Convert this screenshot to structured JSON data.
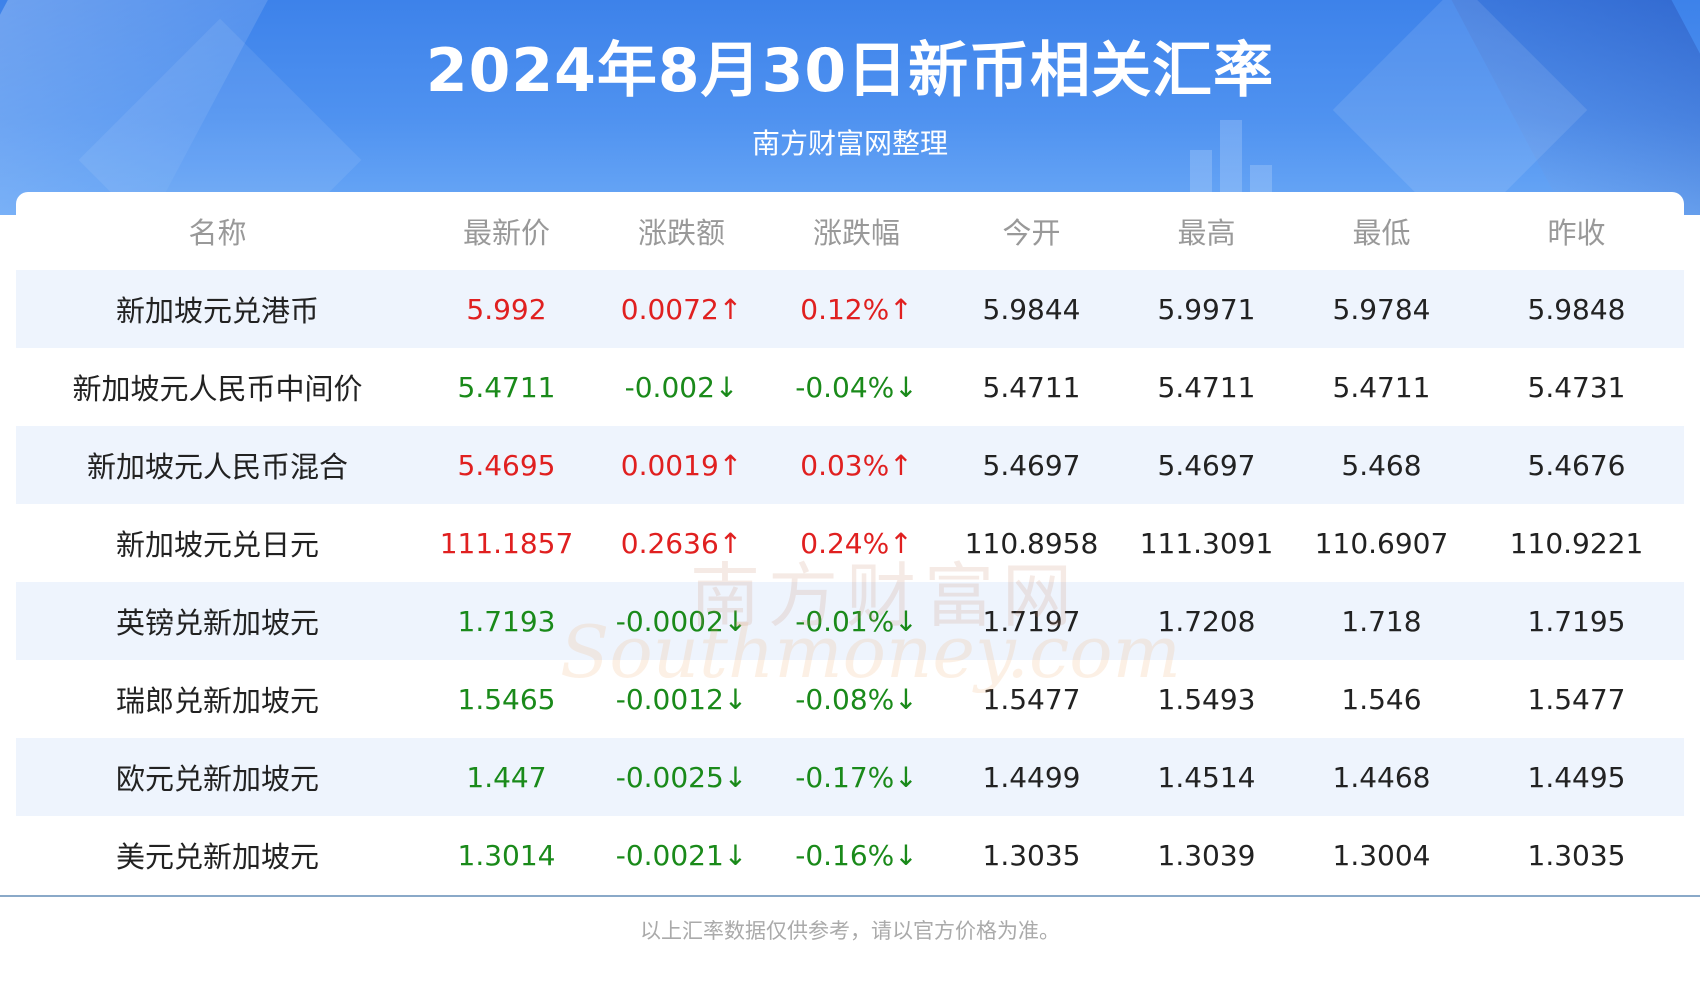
{
  "header": {
    "title": "2024年8月30日新币相关汇率",
    "subtitle": "南方财富网整理"
  },
  "table": {
    "columns": [
      "名称",
      "最新价",
      "涨跌额",
      "涨跌幅",
      "今开",
      "最高",
      "最低",
      "昨收"
    ],
    "rows": [
      {
        "name": "新加坡元兑港币",
        "latest": "5.992",
        "change": "0.0072↑",
        "pct": "0.12%↑",
        "open": "5.9844",
        "high": "5.9971",
        "low": "5.9784",
        "prev": "5.9848",
        "dir": "up"
      },
      {
        "name": "新加坡元人民币中间价",
        "latest": "5.4711",
        "change": "-0.002↓",
        "pct": "-0.04%↓",
        "open": "5.4711",
        "high": "5.4711",
        "low": "5.4711",
        "prev": "5.4731",
        "dir": "down"
      },
      {
        "name": "新加坡元人民币混合",
        "latest": "5.4695",
        "change": "0.0019↑",
        "pct": "0.03%↑",
        "open": "5.4697",
        "high": "5.4697",
        "low": "5.468",
        "prev": "5.4676",
        "dir": "up"
      },
      {
        "name": "新加坡元兑日元",
        "latest": "111.1857",
        "change": "0.2636↑",
        "pct": "0.24%↑",
        "open": "110.8958",
        "high": "111.3091",
        "low": "110.6907",
        "prev": "110.9221",
        "dir": "up"
      },
      {
        "name": "英镑兑新加坡元",
        "latest": "1.7193",
        "change": "-0.0002↓",
        "pct": "-0.01%↓",
        "open": "1.7197",
        "high": "1.7208",
        "low": "1.718",
        "prev": "1.7195",
        "dir": "down"
      },
      {
        "name": "瑞郎兑新加坡元",
        "latest": "1.5465",
        "change": "-0.0012↓",
        "pct": "-0.08%↓",
        "open": "1.5477",
        "high": "1.5493",
        "low": "1.546",
        "prev": "1.5477",
        "dir": "down"
      },
      {
        "name": "欧元兑新加坡元",
        "latest": "1.447",
        "change": "-0.0025↓",
        "pct": "-0.17%↓",
        "open": "1.4499",
        "high": "1.4514",
        "low": "1.4468",
        "prev": "1.4495",
        "dir": "down"
      },
      {
        "name": "美元兑新加坡元",
        "latest": "1.3014",
        "change": "-0.0021↓",
        "pct": "-0.16%↓",
        "open": "1.3035",
        "high": "1.3039",
        "low": "1.3004",
        "prev": "1.3035",
        "dir": "down"
      }
    ]
  },
  "watermark": {
    "cn": "南方财富网",
    "en": "Southmoney.com"
  },
  "footer": {
    "note": "以上汇率数据仅供参考，请以官方价格为准。"
  },
  "colors": {
    "up": "#e02020",
    "down": "#1a8a1a",
    "header_blue": "#3d82ea"
  }
}
